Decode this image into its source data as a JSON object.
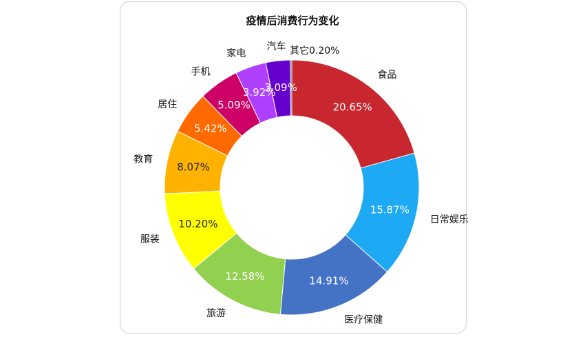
{
  "chart_data": {
    "type": "pie",
    "variant": "donut",
    "title": "疫情后消费行为变化",
    "legend": "none",
    "categories": [
      "食品",
      "日常娱乐",
      "医疗保健",
      "旅游",
      "服装",
      "教育",
      "居住",
      "手机",
      "家电",
      "汽车",
      "其它"
    ],
    "values": [
      20.65,
      15.87,
      14.91,
      12.58,
      10.2,
      8.07,
      5.42,
      5.09,
      3.92,
      3.09,
      0.2
    ],
    "value_labels": [
      "20.65%",
      "15.87%",
      "14.91%",
      "12.58%",
      "10.20%",
      "8.07%",
      "5.42%",
      "5.09%",
      "3.92%",
      "3.09%",
      "0.20%"
    ],
    "colors": [
      "#C8272F",
      "#1EA9F4",
      "#4472C4",
      "#92D050",
      "#FFFF00",
      "#FFB300",
      "#FF6A00",
      "#CC0066",
      "#B040FF",
      "#6600CC",
      "#555555"
    ],
    "label_colors": [
      "#ffffff",
      "#ffffff",
      "#ffffff",
      "#ffffff",
      "#222222",
      "#222222",
      "#ffffff",
      "#ffffff",
      "#ffffff",
      "#ffffff",
      "#222222"
    ]
  }
}
